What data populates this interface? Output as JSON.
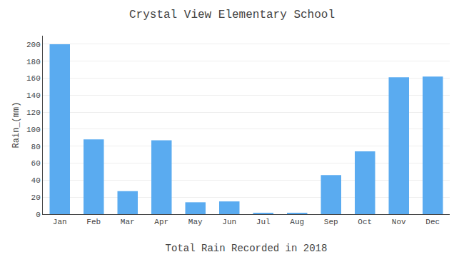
{
  "chart_data": {
    "type": "bar",
    "title": "Crystal View Elementary School",
    "xlabel": "Total Rain Recorded in 2018",
    "ylabel": "Rain_(mm)",
    "categories": [
      "Jan",
      "Feb",
      "Mar",
      "Apr",
      "May",
      "Jun",
      "Jul",
      "Aug",
      "Sep",
      "Oct",
      "Nov",
      "Dec"
    ],
    "values": [
      200,
      88,
      27,
      87,
      14,
      15,
      1,
      1,
      46,
      74,
      161,
      162
    ],
    "color": "#5aabf0",
    "ylim": [
      0,
      210
    ],
    "yticks": [
      0,
      20,
      40,
      60,
      80,
      100,
      120,
      140,
      160,
      180,
      200
    ],
    "grid": true
  }
}
